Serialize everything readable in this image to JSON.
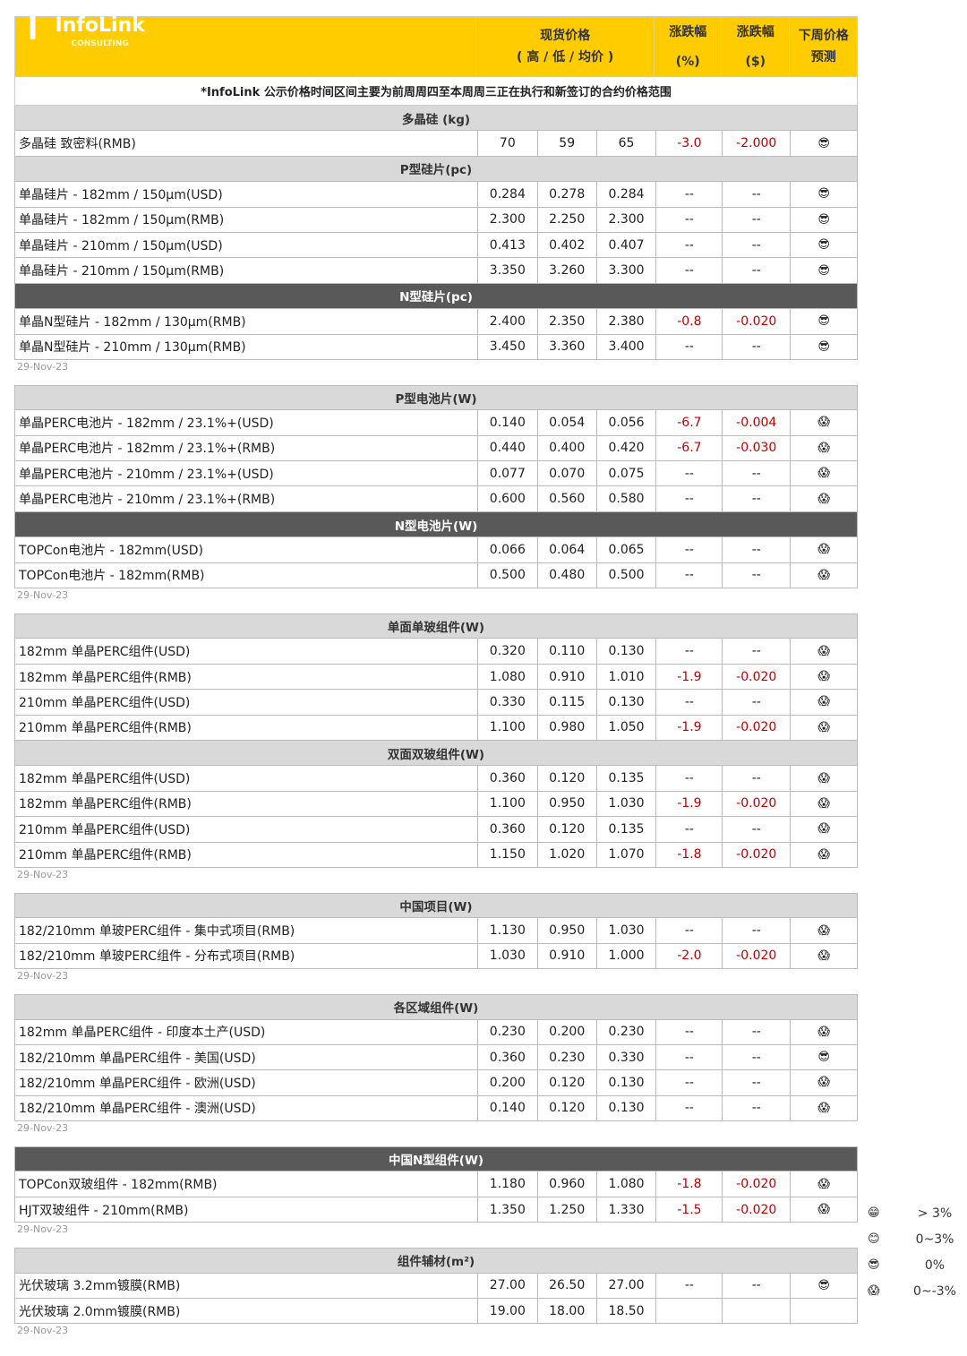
{
  "header": {
    "logo_text": "InfoLink",
    "logo_sub": "CONSULTING",
    "spot_price": "现货价格",
    "spot_sub": "( 高 / 低 / 均价 )",
    "chg_pct": "涨跌幅",
    "chg_pct_unit": "(%)",
    "chg_usd": "涨跌幅",
    "chg_usd_unit": "($)",
    "forecast": "下周价格",
    "forecast2": "预测"
  },
  "note": "*InfoLink 公示价格时间区间主要为前周周四至本周周三正在执行和新签订的合约价格范围",
  "colors": {
    "header": "#ffcc00",
    "section_light": "#d9d9d9",
    "section_dark": "#595959",
    "negative": "#c00000"
  },
  "icons": {
    "flat": "😎",
    "down": "😱"
  },
  "blocks": [
    {
      "date": "29-Nov-23",
      "sections": [
        {
          "title": "多晶硅 (kg)",
          "dark": false,
          "rows": [
            [
              "多晶硅 致密料(RMB)",
              "70",
              "59",
              "65",
              "-3.0",
              "-2.000",
              "flat"
            ]
          ]
        },
        {
          "title": "P型硅片(pc)",
          "dark": false,
          "rows": [
            [
              "单晶硅片 - 182mm / 150μm(USD)",
              "0.284",
              "0.278",
              "0.284",
              "--",
              "--",
              "flat"
            ],
            [
              "单晶硅片 - 182mm / 150μm(RMB)",
              "2.300",
              "2.250",
              "2.300",
              "--",
              "--",
              "flat"
            ],
            [
              "单晶硅片 - 210mm / 150μm(USD)",
              "0.413",
              "0.402",
              "0.407",
              "--",
              "--",
              "flat"
            ],
            [
              "单晶硅片 - 210mm / 150μm(RMB)",
              "3.350",
              "3.260",
              "3.300",
              "--",
              "--",
              "flat"
            ]
          ]
        },
        {
          "title": "N型硅片(pc)",
          "dark": true,
          "rows": [
            [
              "单晶N型硅片 - 182mm / 130μm(RMB)",
              "2.400",
              "2.350",
              "2.380",
              "-0.8",
              "-0.020",
              "flat"
            ],
            [
              "单晶N型硅片 - 210mm / 130μm(RMB)",
              "3.450",
              "3.360",
              "3.400",
              "--",
              "--",
              "flat"
            ]
          ]
        }
      ]
    },
    {
      "date": "29-Nov-23",
      "sections": [
        {
          "title": "P型电池片(W)",
          "dark": false,
          "rows": [
            [
              "单晶PERC电池片 - 182mm / 23.1%+(USD)",
              "0.140",
              "0.054",
              "0.056",
              "-6.7",
              "-0.004",
              "down"
            ],
            [
              "单晶PERC电池片 - 182mm / 23.1%+(RMB)",
              "0.440",
              "0.400",
              "0.420",
              "-6.7",
              "-0.030",
              "down"
            ],
            [
              "单晶PERC电池片 - 210mm / 23.1%+(USD)",
              "0.077",
              "0.070",
              "0.075",
              "--",
              "--",
              "down"
            ],
            [
              "单晶PERC电池片 - 210mm / 23.1%+(RMB)",
              "0.600",
              "0.560",
              "0.580",
              "--",
              "--",
              "down"
            ]
          ]
        },
        {
          "title": "N型电池片(W)",
          "dark": true,
          "rows": [
            [
              "TOPCon电池片 - 182mm(USD)",
              "0.066",
              "0.064",
              "0.065",
              "--",
              "--",
              "down"
            ],
            [
              "TOPCon电池片 - 182mm(RMB)",
              "0.500",
              "0.480",
              "0.500",
              "--",
              "--",
              "down"
            ]
          ]
        }
      ]
    },
    {
      "date": "29-Nov-23",
      "sections": [
        {
          "title": "单面单玻组件(W)",
          "dark": false,
          "rows": [
            [
              "182mm 单晶PERC组件(USD)",
              "0.320",
              "0.110",
              "0.130",
              "--",
              "--",
              "down"
            ],
            [
              "182mm 单晶PERC组件(RMB)",
              "1.080",
              "0.910",
              "1.010",
              "-1.9",
              "-0.020",
              "down"
            ],
            [
              "210mm 单晶PERC组件(USD)",
              "0.330",
              "0.115",
              "0.130",
              "--",
              "--",
              "down"
            ],
            [
              "210mm 单晶PERC组件(RMB)",
              "1.100",
              "0.980",
              "1.050",
              "-1.9",
              "-0.020",
              "down"
            ]
          ]
        },
        {
          "title": "双面双玻组件(W)",
          "dark": false,
          "rows": [
            [
              "182mm 单晶PERC组件(USD)",
              "0.360",
              "0.120",
              "0.135",
              "--",
              "--",
              "down"
            ],
            [
              "182mm 单晶PERC组件(RMB)",
              "1.100",
              "0.950",
              "1.030",
              "-1.9",
              "-0.020",
              "down"
            ],
            [
              "210mm 单晶PERC组件(USD)",
              "0.360",
              "0.120",
              "0.135",
              "--",
              "--",
              "down"
            ],
            [
              "210mm 单晶PERC组件(RMB)",
              "1.150",
              "1.020",
              "1.070",
              "-1.8",
              "-0.020",
              "down"
            ]
          ]
        }
      ]
    },
    {
      "date": "29-Nov-23",
      "sections": [
        {
          "title": "中国项目(W)",
          "dark": false,
          "rows": [
            [
              "182/210mm 单玻PERC组件 - 集中式项目(RMB)",
              "1.130",
              "0.950",
              "1.030",
              "--",
              "--",
              "down"
            ],
            [
              "182/210mm 单玻PERC组件 - 分布式项目(RMB)",
              "1.030",
              "0.910",
              "1.000",
              "-2.0",
              "-0.020",
              "down"
            ]
          ]
        }
      ]
    },
    {
      "date": "29-Nov-23",
      "sections": [
        {
          "title": "各区域组件(W)",
          "dark": false,
          "rows": [
            [
              "182mm 单晶PERC组件 - 印度本土产(USD)",
              "0.230",
              "0.200",
              "0.230",
              "--",
              "--",
              "down"
            ],
            [
              "182/210mm 单晶PERC组件 - 美国(USD)",
              "0.360",
              "0.230",
              "0.330",
              "--",
              "--",
              "flat"
            ],
            [
              "182/210mm 单晶PERC组件 - 欧洲(USD)",
              "0.200",
              "0.120",
              "0.130",
              "--",
              "--",
              "down"
            ],
            [
              "182/210mm 单晶PERC组件 - 澳洲(USD)",
              "0.140",
              "0.120",
              "0.130",
              "--",
              "--",
              "down"
            ]
          ]
        }
      ]
    },
    {
      "date": "29-Nov-23",
      "sections": [
        {
          "title": "中国N型组件(W)",
          "dark": true,
          "rows": [
            [
              "TOPCon双玻组件 - 182mm(RMB)",
              "1.180",
              "0.960",
              "1.080",
              "-1.8",
              "-0.020",
              "down"
            ],
            [
              "HJT双玻组件 - 210mm(RMB)",
              "1.350",
              "1.250",
              "1.330",
              "-1.5",
              "-0.020",
              "down"
            ]
          ]
        }
      ]
    },
    {
      "date": "29-Nov-23",
      "sections": [
        {
          "title": "组件辅材(m²)",
          "dark": false,
          "rows": [
            [
              "光伏玻璃 3.2mm镀膜(RMB)",
              "27.00",
              "26.50",
              "27.00",
              "--",
              "--",
              "flat"
            ],
            [
              "光伏玻璃 2.0mm镀膜(RMB)",
              "19.00",
              "18.00",
              "18.50",
              "",
              "",
              ""
            ]
          ]
        }
      ]
    }
  ],
  "legend": [
    {
      "icon": "😁",
      "label": "> 3%"
    },
    {
      "icon": "😊",
      "label": "0~3%"
    },
    {
      "icon": "😎",
      "label": "0%"
    },
    {
      "icon": "😱",
      "label": "0~-3%"
    }
  ]
}
